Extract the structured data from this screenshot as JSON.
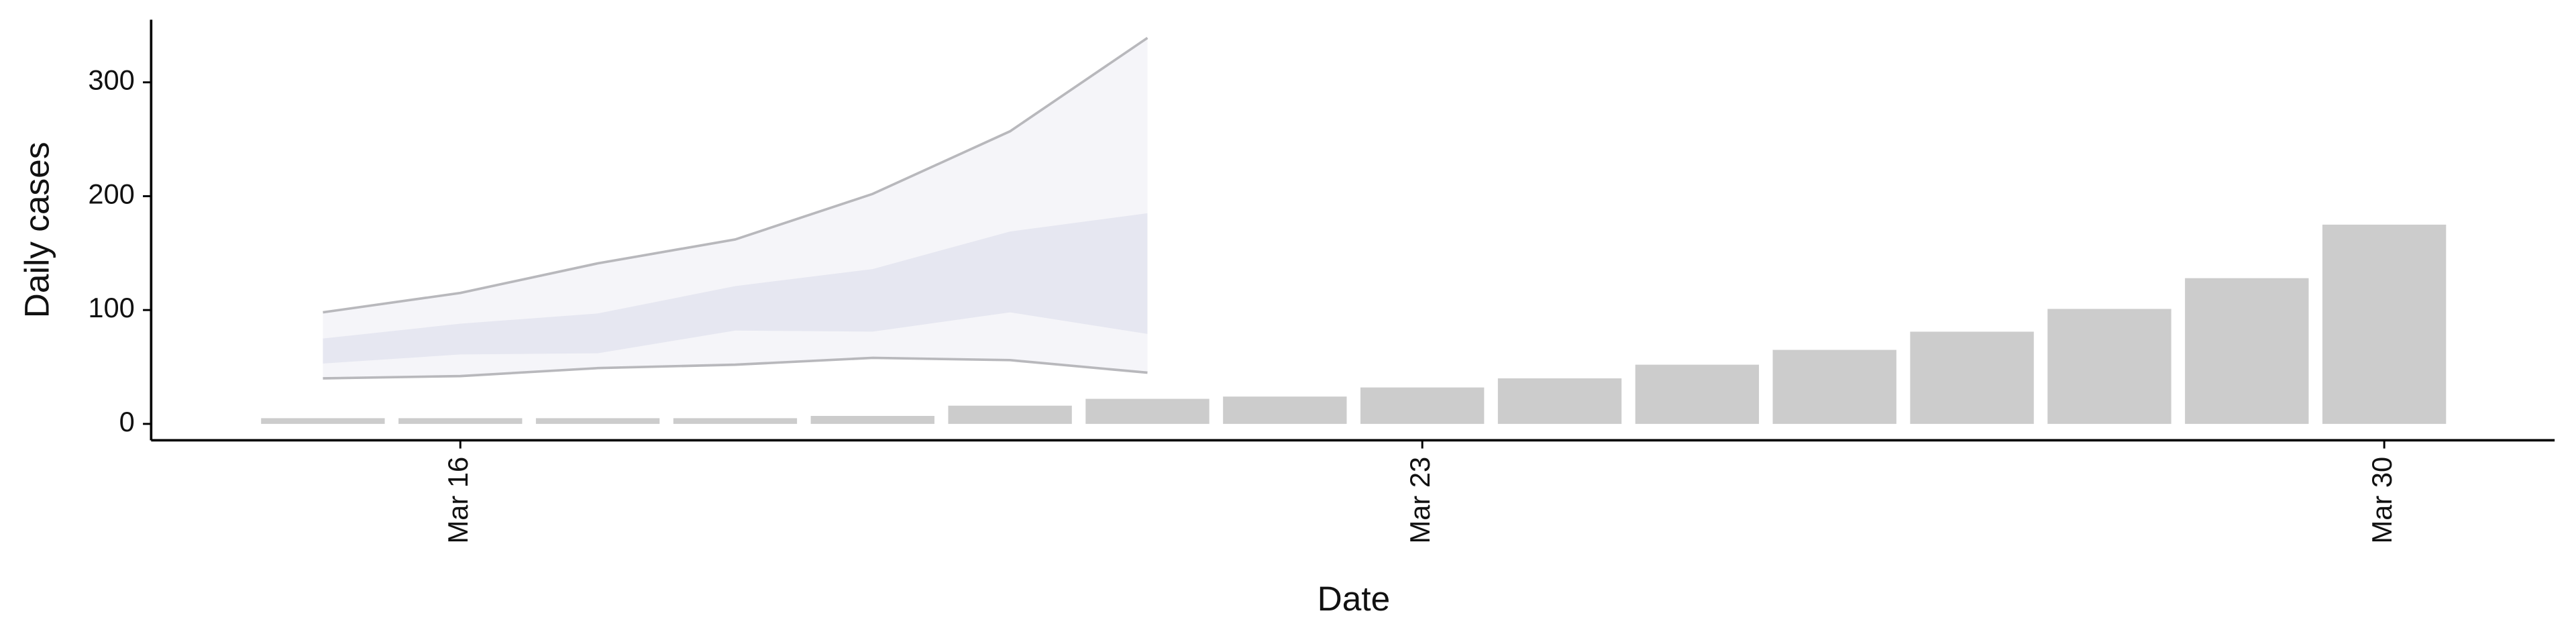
{
  "chart_data": {
    "type": "bar",
    "x_label": "Date",
    "y_label": "Daily cases",
    "x": [
      15,
      16,
      17,
      18,
      19,
      20,
      21,
      22,
      23,
      24,
      25,
      26,
      27,
      28,
      29,
      30
    ],
    "values": [
      5,
      5,
      5,
      5,
      7,
      16,
      22,
      24,
      32,
      40,
      52,
      65,
      81,
      101,
      128,
      175
    ],
    "color": "#cccccc",
    "xlim": [
      13.75,
      31.24
    ],
    "xticks": [
      {
        "value": 16,
        "label": "Mar 16"
      },
      {
        "value": 23,
        "label": "Mar 23"
      },
      {
        "value": 30,
        "label": "Mar 30"
      }
    ],
    "ylim": [
      -14.4,
      355
    ],
    "yticks": [
      0,
      100,
      200,
      300
    ],
    "forecast": {
      "x": [
        15,
        16,
        17,
        18,
        19,
        20,
        21
      ],
      "outer_lower": [
        40,
        42,
        49,
        52,
        58,
        56,
        45
      ],
      "outer_upper": [
        98,
        115,
        141,
        162,
        202,
        257,
        339
      ],
      "inner_lower": [
        53,
        61,
        62,
        82,
        81,
        98,
        79
      ],
      "inner_upper": [
        75,
        88,
        97,
        121,
        136,
        169,
        185
      ],
      "outer_color": "#f4f4f8",
      "inner_color": "#e4e6ef",
      "line_color": "#b8b8bc"
    }
  }
}
